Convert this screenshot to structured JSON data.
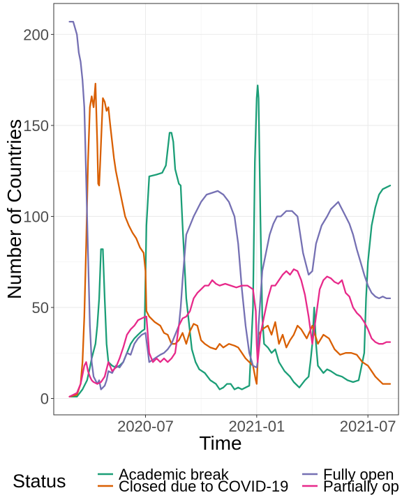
{
  "chart_data": {
    "type": "line",
    "title": "",
    "xlabel": "Time",
    "ylabel": "Number of Countries",
    "x_unit": "months since 2020-01-01",
    "xlim": [
      1.05,
      19.65
    ],
    "ylim": [
      -9,
      217
    ],
    "x_ticks": [
      {
        "value": 6,
        "label": "2020-07"
      },
      {
        "value": 12,
        "label": "2021-01"
      },
      {
        "value": 18,
        "label": "2021-07"
      }
    ],
    "y_ticks": [
      {
        "value": 0,
        "label": "0"
      },
      {
        "value": 50,
        "label": "50"
      },
      {
        "value": 100,
        "label": "100"
      },
      {
        "value": 150,
        "label": "150"
      },
      {
        "value": 200,
        "label": "200"
      }
    ],
    "grid": true,
    "legend": {
      "title": "Status",
      "position": "bottom",
      "entries": [
        "Academic break",
        "Closed due to COVID-19",
        "Fully open",
        "Partially op"
      ]
    },
    "series": [
      {
        "name": "Academic break",
        "color": "#1B9E77",
        "x": [
          1.9,
          2.3,
          2.6,
          2.85,
          3.0,
          3.1,
          3.2,
          3.3,
          3.4,
          3.5,
          3.6,
          3.7,
          3.8,
          3.9,
          4.0,
          4.2,
          4.4,
          4.6,
          4.8,
          5.0,
          5.2,
          5.4,
          5.6,
          5.8,
          5.95,
          6.05,
          6.2,
          6.6,
          6.9,
          7.0,
          7.1,
          7.3,
          7.4,
          7.5,
          7.6,
          7.7,
          7.8,
          7.9,
          8.0,
          8.2,
          8.5,
          8.7,
          8.9,
          9.2,
          9.5,
          9.8,
          10.0,
          10.2,
          10.4,
          10.6,
          10.8,
          11.0,
          11.2,
          11.4,
          11.6,
          11.8,
          11.9,
          12.0,
          12.05,
          12.1,
          12.2,
          12.3,
          12.4,
          12.6,
          12.8,
          13.0,
          13.2,
          13.5,
          13.8,
          14.0,
          14.3,
          14.6,
          14.8,
          14.9,
          15.0,
          15.1,
          15.2,
          15.3,
          15.6,
          15.8,
          16.0,
          16.3,
          16.6,
          16.9,
          17.2,
          17.5,
          17.8,
          17.9,
          18.0,
          18.2,
          18.4,
          18.6,
          18.8,
          19.0,
          19.2
        ],
        "values": [
          1,
          1,
          5,
          10,
          17,
          22,
          26,
          30,
          40,
          55,
          82,
          82,
          55,
          30,
          20,
          18,
          17,
          18,
          20,
          25,
          30,
          33,
          35,
          37,
          38,
          95,
          122,
          123,
          124,
          126,
          128,
          146,
          146,
          141,
          126,
          122,
          118,
          117,
          95,
          55,
          27,
          20,
          16,
          14,
          10,
          8,
          5,
          6,
          8,
          8,
          5,
          6,
          5,
          6,
          7,
          50,
          130,
          165,
          172,
          165,
          100,
          45,
          30,
          28,
          25,
          27,
          20,
          15,
          12,
          9,
          6,
          10,
          12,
          20,
          30,
          50,
          30,
          18,
          14,
          16,
          15,
          13,
          12,
          10,
          9,
          10,
          25,
          55,
          75,
          95,
          105,
          112,
          115,
          116,
          117
        ]
      },
      {
        "name": "Closed due to COVID-19",
        "color": "#D95F02",
        "x": [
          1.9,
          2.3,
          2.5,
          2.6,
          2.7,
          2.8,
          2.9,
          3.0,
          3.1,
          3.2,
          3.3,
          3.4,
          3.45,
          3.5,
          3.55,
          3.6,
          3.7,
          3.8,
          3.9,
          4.0,
          4.1,
          4.3,
          4.4,
          4.5,
          4.7,
          4.9,
          5.1,
          5.3,
          5.5,
          5.7,
          5.9,
          6.0,
          6.05,
          6.2,
          6.5,
          6.8,
          7.0,
          7.2,
          7.4,
          7.6,
          7.8,
          8.0,
          8.2,
          8.4,
          8.6,
          8.8,
          9.0,
          9.2,
          9.5,
          9.8,
          10.0,
          10.2,
          10.5,
          10.8,
          11.0,
          11.2,
          11.4,
          11.6,
          11.8,
          11.95,
          12.0,
          12.05,
          12.1,
          12.3,
          12.6,
          12.8,
          13.0,
          13.2,
          13.4,
          13.6,
          13.8,
          14.0,
          14.2,
          14.4,
          14.7,
          15.0,
          15.3,
          15.6,
          15.9,
          16.2,
          16.5,
          16.8,
          17.1,
          17.4,
          17.7,
          18.0,
          18.2,
          18.4,
          18.6,
          18.8,
          19.0,
          19.2
        ],
        "values": [
          1,
          2,
          8,
          20,
          45,
          85,
          130,
          160,
          166,
          160,
          173,
          140,
          118,
          117,
          128,
          140,
          165,
          163,
          158,
          160,
          150,
          132,
          125,
          120,
          110,
          100,
          95,
          91,
          88,
          83,
          80,
          70,
          48,
          45,
          42,
          40,
          36,
          35,
          30,
          30,
          32,
          36,
          30,
          37,
          41,
          40,
          32,
          30,
          28,
          27,
          30,
          28,
          30,
          29,
          28,
          25,
          22,
          20,
          18,
          10,
          8,
          20,
          35,
          38,
          40,
          35,
          42,
          30,
          35,
          28,
          32,
          35,
          40,
          38,
          33,
          40,
          30,
          35,
          33,
          27,
          24,
          25,
          25,
          24,
          20,
          18,
          15,
          12,
          10,
          8,
          8,
          8
        ]
      },
      {
        "name": "Fully open",
        "color": "#7570B3",
        "x": [
          1.9,
          2.1,
          2.3,
          2.4,
          2.5,
          2.6,
          2.7,
          2.75,
          2.8,
          2.9,
          3.0,
          3.1,
          3.2,
          3.3,
          3.4,
          3.5,
          3.6,
          3.7,
          3.8,
          3.9,
          4.0,
          4.2,
          4.4,
          4.6,
          4.8,
          5.0,
          5.2,
          5.4,
          5.6,
          5.8,
          6.0,
          6.2,
          6.5,
          6.8,
          7.0,
          7.2,
          7.4,
          7.6,
          7.8,
          7.9,
          8.0,
          8.2,
          8.4,
          8.6,
          8.8,
          9.0,
          9.3,
          9.6,
          9.9,
          10.2,
          10.5,
          10.8,
          11.0,
          11.2,
          11.4,
          11.6,
          11.8,
          12.0,
          12.05,
          12.1,
          12.3,
          12.5,
          12.7,
          12.9,
          13.1,
          13.3,
          13.6,
          13.9,
          14.2,
          14.5,
          14.8,
          15.0,
          15.2,
          15.5,
          15.8,
          16.0,
          16.2,
          16.4,
          16.6,
          16.8,
          17.0,
          17.2,
          17.4,
          17.6,
          17.8,
          18.0,
          18.2,
          18.4,
          18.6,
          18.8,
          19.0,
          19.2
        ],
        "values": [
          207,
          207,
          200,
          190,
          185,
          175,
          160,
          140,
          120,
          80,
          40,
          20,
          12,
          10,
          8,
          10,
          5,
          6,
          7,
          10,
          15,
          14,
          18,
          17,
          20,
          25,
          24,
          30,
          33,
          35,
          36,
          20,
          22,
          24,
          25,
          27,
          30,
          35,
          40,
          50,
          65,
          90,
          95,
          100,
          104,
          108,
          112,
          113,
          114,
          112,
          108,
          100,
          85,
          60,
          40,
          25,
          18,
          17,
          20,
          40,
          70,
          80,
          90,
          96,
          100,
          100,
          103,
          103,
          100,
          80,
          68,
          70,
          85,
          95,
          100,
          104,
          106,
          108,
          104,
          100,
          96,
          90,
          82,
          75,
          68,
          62,
          58,
          56,
          55,
          56,
          55,
          55
        ]
      },
      {
        "name": "Partially op",
        "color": "#E7298A",
        "x": [
          1.9,
          2.3,
          2.5,
          2.6,
          2.7,
          2.8,
          2.9,
          3.0,
          3.1,
          3.2,
          3.4,
          3.6,
          3.8,
          4.0,
          4.2,
          4.4,
          4.6,
          4.8,
          5.0,
          5.2,
          5.4,
          5.6,
          5.8,
          6.0,
          6.05,
          6.2,
          6.4,
          6.6,
          6.8,
          7.0,
          7.2,
          7.4,
          7.6,
          7.8,
          8.0,
          8.2,
          8.4,
          8.6,
          8.8,
          9.0,
          9.2,
          9.4,
          9.6,
          9.8,
          10.0,
          10.3,
          10.6,
          10.9,
          11.2,
          11.5,
          11.8,
          11.95,
          12.0,
          12.05,
          12.2,
          12.4,
          12.6,
          12.8,
          13.0,
          13.2,
          13.4,
          13.6,
          13.8,
          14.0,
          14.2,
          14.4,
          14.6,
          14.8,
          15.0,
          15.2,
          15.4,
          15.6,
          15.8,
          16.0,
          16.2,
          16.4,
          16.6,
          16.8,
          17.0,
          17.2,
          17.4,
          17.6,
          17.8,
          18.0,
          18.2,
          18.4,
          18.6,
          18.8,
          19.0,
          19.2
        ],
        "values": [
          1,
          3,
          8,
          13,
          18,
          20,
          15,
          12,
          10,
          9,
          8,
          9,
          12,
          20,
          15,
          17,
          22,
          28,
          35,
          38,
          40,
          43,
          44,
          45,
          45,
          25,
          20,
          22,
          20,
          22,
          20,
          22,
          25,
          40,
          44,
          45,
          48,
          55,
          58,
          60,
          62,
          62,
          65,
          63,
          62,
          63,
          62,
          61,
          62,
          62,
          60,
          48,
          30,
          20,
          35,
          45,
          55,
          62,
          62,
          65,
          68,
          70,
          68,
          71,
          70,
          65,
          57,
          45,
          30,
          45,
          60,
          65,
          67,
          66,
          64,
          63,
          65,
          58,
          56,
          50,
          47,
          45,
          42,
          38,
          33,
          31,
          30,
          30,
          31,
          31
        ]
      }
    ]
  }
}
